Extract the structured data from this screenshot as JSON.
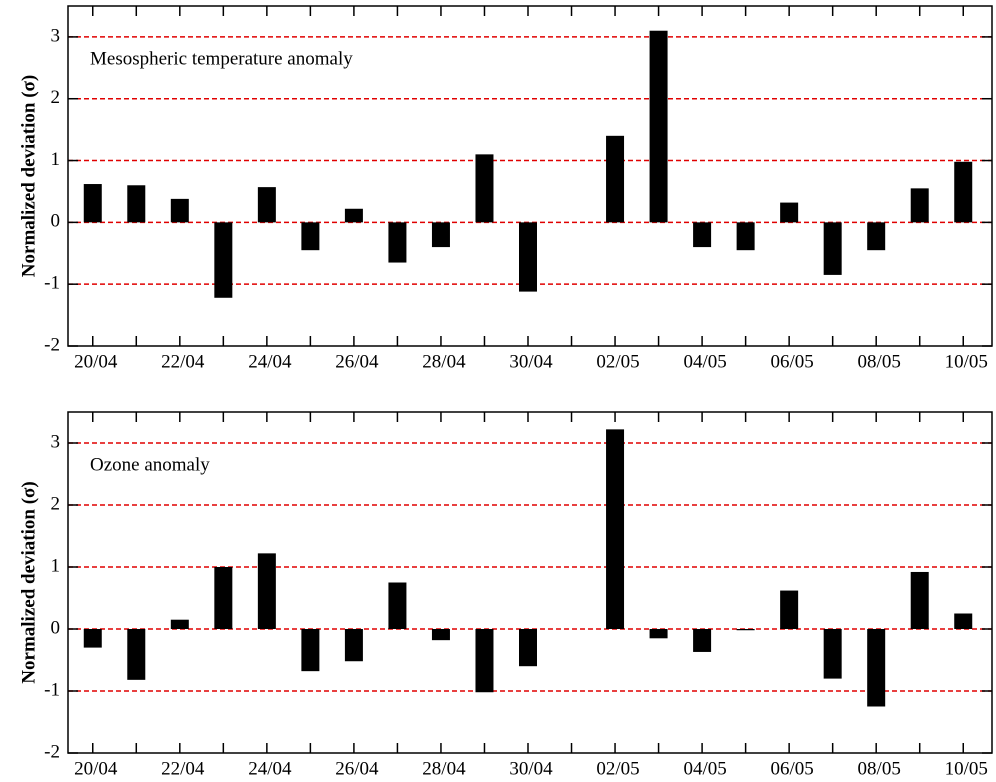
{
  "chart_data": [
    {
      "type": "bar",
      "annotation": "Mesospheric temperature anomaly",
      "y_label": "Normalized deviation (σ)",
      "categories": [
        "20/04",
        null,
        "22/04",
        null,
        "24/04",
        null,
        "26/04",
        null,
        "28/04",
        null,
        "30/04",
        null,
        "02/05",
        null,
        "04/05",
        null,
        "06/05",
        null,
        "08/05",
        null,
        "10/05"
      ],
      "values": [
        0.62,
        0.6,
        0.38,
        -1.22,
        0.57,
        -0.45,
        0.22,
        -0.65,
        -0.4,
        1.1,
        -1.12,
        null,
        1.4,
        3.1,
        -0.4,
        -0.45,
        0.32,
        -0.85,
        -0.45,
        0.55,
        0.98
      ],
      "color": "#000000",
      "grid_color": "#e00000",
      "ylim": [
        -2,
        3.5
      ],
      "yticks": [
        -2,
        -1,
        0,
        1,
        2,
        3
      ],
      "grid": true
    },
    {
      "type": "bar",
      "annotation": "Ozone anomaly",
      "y_label": "Normalized deviation (σ)",
      "categories": [
        "20/04",
        null,
        "22/04",
        null,
        "24/04",
        null,
        "26/04",
        null,
        "28/04",
        null,
        "30/04",
        null,
        "02/05",
        null,
        "04/05",
        null,
        "06/05",
        null,
        "08/05",
        null,
        "10/05"
      ],
      "values": [
        -0.3,
        -0.82,
        0.15,
        1.0,
        1.22,
        -0.68,
        -0.52,
        0.75,
        -0.18,
        -1.02,
        -0.6,
        null,
        3.22,
        -0.15,
        -0.37,
        -0.02,
        0.62,
        -0.8,
        -1.25,
        0.92,
        0.25
      ],
      "color": "#000000",
      "grid_color": "#e00000",
      "ylim": [
        -2,
        3.5
      ],
      "yticks": [
        -2,
        -1,
        0,
        1,
        2,
        3
      ],
      "grid": true
    }
  ]
}
